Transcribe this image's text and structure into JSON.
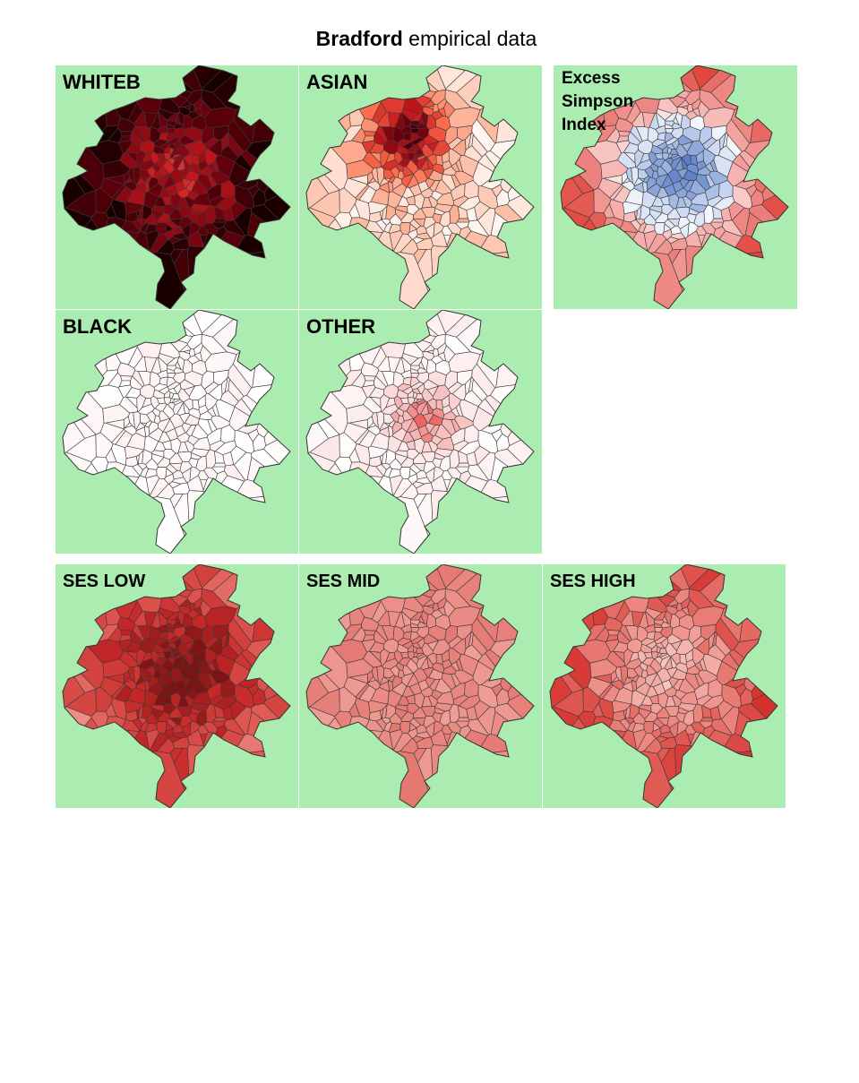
{
  "title": {
    "bold": "Bradford",
    "rest": " empirical data"
  },
  "base_color": "#abecb0",
  "panels": [
    {
      "id": "whiteb",
      "label": "WHITEB",
      "scheme": "reds-dark",
      "level": 0.85
    },
    {
      "id": "asian",
      "label": "ASIAN",
      "scheme": "reds-center",
      "level": 0.45
    },
    {
      "id": "excess",
      "label": "Excess\nSimpson\nIndex",
      "scheme": "diverging",
      "level": 0.5
    },
    {
      "id": "black",
      "label": "BLACK",
      "scheme": "reds-faint",
      "level": 0.03
    },
    {
      "id": "other",
      "label": "OTHER",
      "scheme": "reds-center-faint",
      "level": 0.15
    },
    {
      "id": "seslow",
      "label": "SES LOW",
      "scheme": "reds-ses-low",
      "level": 0.65
    },
    {
      "id": "sesmid",
      "label": "SES MID",
      "scheme": "reds-ses-mid",
      "level": 0.35
    },
    {
      "id": "seshigh",
      "label": "SES HIGH",
      "scheme": "reds-ses-high",
      "level": 0.4
    }
  ]
}
